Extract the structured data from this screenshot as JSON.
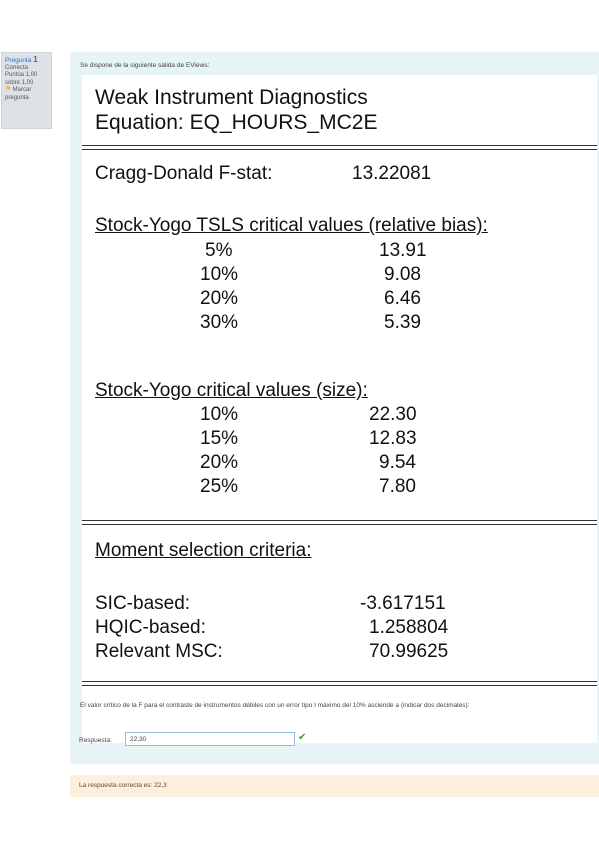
{
  "question_info": {
    "label": "Pregunta",
    "number": "1",
    "status": "Correcta",
    "score_line1": "Puntúa 1,00",
    "score_line2": "sobre 1,00",
    "flag_label_line1": "Marcar",
    "flag_label_line2": "pregunta",
    "flag_icon": "flag-icon"
  },
  "question": {
    "intro": "Se dispone de la siguiente salida de EViews:",
    "text": "El valor crítico de la F para el contraste de instrumentos débiles con un error tipo I máximo del 10% asciende a (indicar dos decimales):",
    "answer_label": "Respuesta:",
    "answer_value": "22,30",
    "correct_icon": "check-icon"
  },
  "eviews": {
    "title_line1": "Weak Instrument Diagnostics",
    "title_line2": "Equation: EQ_HOURS_MC2E",
    "cragg_label": "Cragg-Donald F-stat:",
    "cragg_value": "13.22081",
    "relbias_header": "Stock-Yogo TSLS critical values (relative bias):",
    "relbias_rows": [
      {
        "pct": "5%",
        "value": "13.91"
      },
      {
        "pct": "10%",
        "value": "9.08"
      },
      {
        "pct": "20%",
        "value": "6.46"
      },
      {
        "pct": "30%",
        "value": "5.39"
      }
    ],
    "size_header": "Stock-Yogo critical values (size):",
    "size_rows": [
      {
        "pct": "10%",
        "value": "22.30"
      },
      {
        "pct": "15%",
        "value": "12.83"
      },
      {
        "pct": "20%",
        "value": "9.54"
      },
      {
        "pct": "25%",
        "value": "7.80"
      }
    ],
    "moment_header": "Moment selection criteria:",
    "criteria": [
      {
        "label": "SIC-based:",
        "value": "-3.617151"
      },
      {
        "label": "HQIC-based:",
        "value": "1.258804"
      },
      {
        "label": "Relevant MSC:",
        "value": "70.99625"
      }
    ]
  },
  "feedback": {
    "text": "La respuesta correcta es: 22,3"
  },
  "colors": {
    "panel_bg": "#e7f3f5",
    "feedback_bg": "#fcefdc",
    "info_bg": "#dee2e6",
    "link_blue": "#1177d1",
    "check_green": "#3c9b3c"
  }
}
